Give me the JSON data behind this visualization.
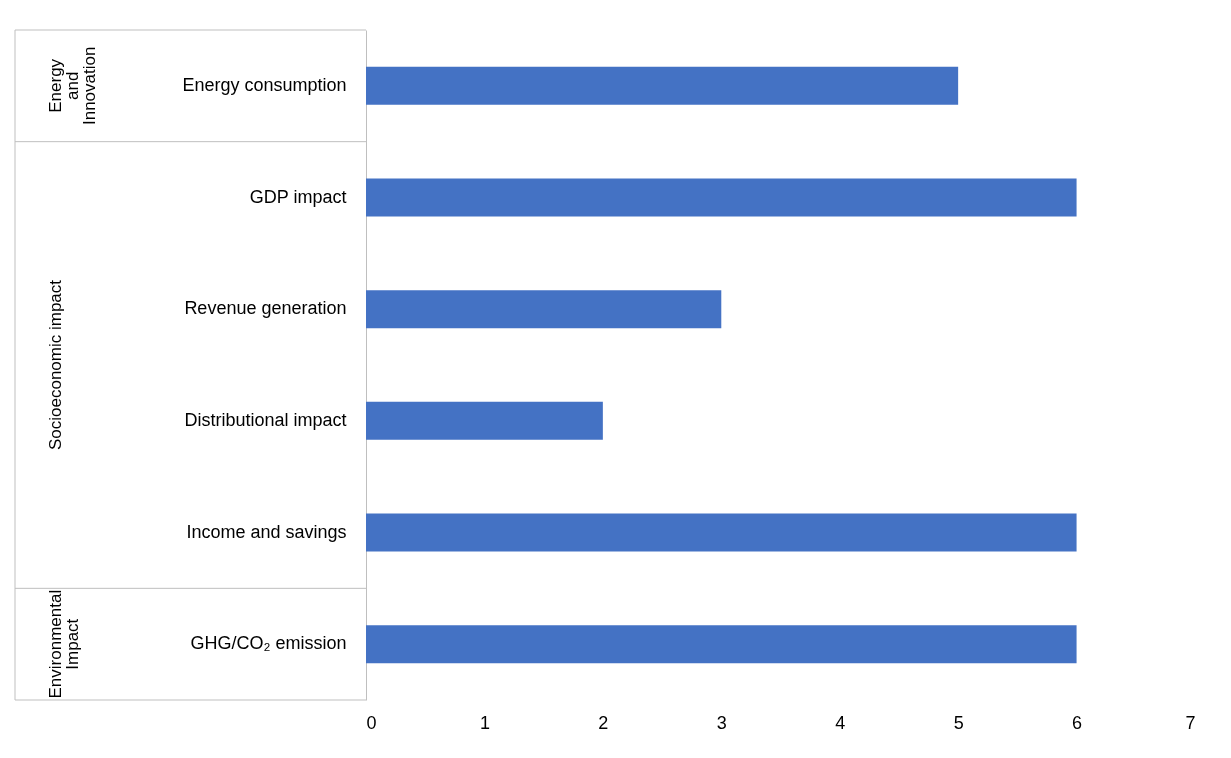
{
  "chart_data": {
    "type": "bar",
    "orientation": "horizontal",
    "categories": [
      "Energy consumption",
      "GDP impact",
      "Revenue generation",
      "Distributional impact",
      "Income and savings",
      "GHG/CO₂ emission"
    ],
    "values": [
      5,
      6,
      3,
      2,
      6,
      6
    ],
    "color": "#4472c4",
    "xlim": [
      0,
      7
    ],
    "xticks": [
      0,
      1,
      2,
      3,
      4,
      5,
      6,
      7
    ],
    "grid": false,
    "annotations": [
      "Energy and Innovation",
      "Socioeconomic impact",
      "Environmental Impact"
    ]
  }
}
